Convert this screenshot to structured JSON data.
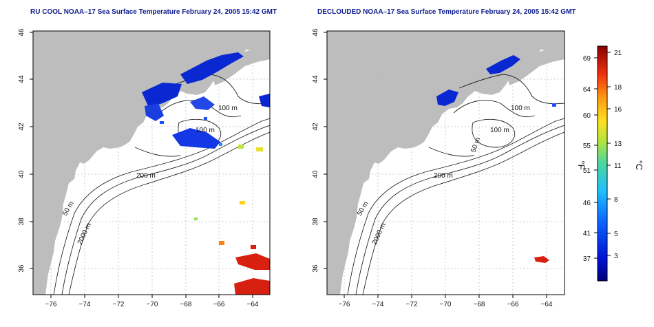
{
  "panels": [
    {
      "title": "RU COOL NOAA–17 Sea Surface Temperature February 24, 2005 15:42 GMT",
      "contour_labels": [
        "100 m",
        "100 m",
        "200 m",
        "50 m",
        "2000 m"
      ]
    },
    {
      "title": "DECLOUDED NOAA–17 Sea Surface Temperature February 24, 2005 15:42 GMT",
      "contour_labels": [
        "100 m",
        "100 m",
        "50 m",
        "200 m",
        "50 m",
        "2000 m"
      ]
    }
  ],
  "axes": {
    "lon_ticks": [
      "−76",
      "−74",
      "−72",
      "−70",
      "−68",
      "−66",
      "−64"
    ],
    "lat_ticks": [
      "36",
      "38",
      "40",
      "42",
      "44",
      "46"
    ]
  },
  "colorbar": {
    "f_label": "°F",
    "c_label": "°C",
    "f_ticks": [
      "69",
      "64",
      "60",
      "55",
      "51",
      "46",
      "41",
      "37"
    ],
    "c_ticks": [
      "21",
      "18",
      "16",
      "13",
      "11",
      "8",
      "5",
      "3"
    ]
  },
  "colors": {
    "land": "#bdbdbd",
    "title": "#0d1b8c",
    "cold": "#0a28d2",
    "warm": "#d82010"
  }
}
